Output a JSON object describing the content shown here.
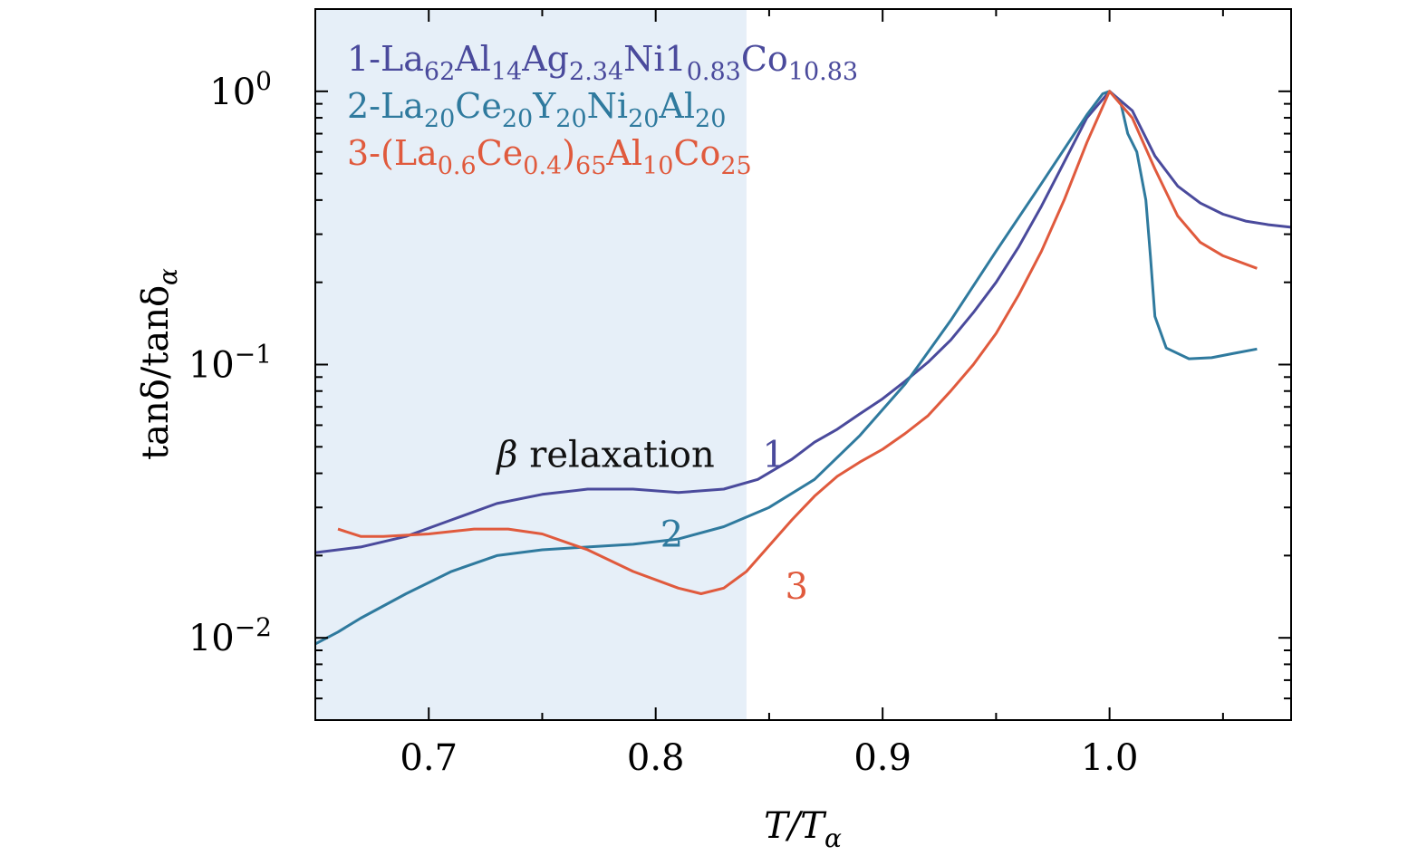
{
  "chart_data": {
    "type": "line",
    "xlabel": "T/Tα",
    "ylabel": "tanδ/tanδα",
    "xlim": [
      0.65,
      1.08
    ],
    "ylim": [
      0.005,
      2.0
    ],
    "yscale": "log",
    "grid": false,
    "legend_position": "top-left",
    "x_ticks": [
      0.7,
      0.8,
      0.9,
      1.0
    ],
    "x_tick_labels": [
      "0.7",
      "0.8",
      "0.9",
      "1.0"
    ],
    "y_ticks": [
      0.01,
      0.1,
      1
    ],
    "y_tick_labels": [
      {
        "base": "10",
        "exp": "−2"
      },
      {
        "base": "10",
        "exp": "−1"
      },
      {
        "base": "10",
        "exp": "0"
      }
    ],
    "shaded_region": {
      "x": [
        0.65,
        0.84
      ],
      "color": "#e6eff8"
    },
    "annotations": {
      "beta_symbol": "β",
      "beta_text": "relaxation",
      "beta_x": 0.73,
      "beta_y": 0.047,
      "curve_labels": [
        {
          "text": "1",
          "x": 0.847,
          "y": 0.047,
          "series": 0
        },
        {
          "text": "2",
          "x": 0.802,
          "y": 0.024,
          "series": 1
        },
        {
          "text": "3",
          "x": 0.857,
          "y": 0.0155,
          "series": 2
        }
      ]
    },
    "series": [
      {
        "name": "1-La62Al14Ag2.34Ni10.83Co10.83",
        "label_parts": [
          [
            "1-La",
            ""
          ],
          [
            "62",
            "sub"
          ],
          [
            "Al",
            ""
          ],
          [
            "14",
            "sub"
          ],
          [
            "Ag",
            ""
          ],
          [
            "2.34",
            "sub"
          ],
          [
            "Ni1",
            ""
          ],
          [
            "0.83",
            "sub"
          ],
          [
            "Co",
            ""
          ],
          [
            "10.83",
            "sub"
          ]
        ],
        "color": "#4a4a9c",
        "x": [
          0.65,
          0.67,
          0.69,
          0.71,
          0.73,
          0.75,
          0.77,
          0.79,
          0.81,
          0.83,
          0.845,
          0.86,
          0.87,
          0.88,
          0.89,
          0.9,
          0.91,
          0.92,
          0.93,
          0.94,
          0.95,
          0.96,
          0.97,
          0.98,
          0.99,
          1.0,
          1.01,
          1.02,
          1.03,
          1.04,
          1.05,
          1.06,
          1.07,
          1.08
        ],
        "y": [
          0.0205,
          0.0215,
          0.0235,
          0.027,
          0.031,
          0.0335,
          0.035,
          0.035,
          0.034,
          0.035,
          0.038,
          0.045,
          0.052,
          0.058,
          0.066,
          0.075,
          0.087,
          0.102,
          0.123,
          0.155,
          0.2,
          0.27,
          0.38,
          0.55,
          0.8,
          1.0,
          0.85,
          0.58,
          0.45,
          0.39,
          0.355,
          0.335,
          0.325,
          0.318
        ]
      },
      {
        "name": "2-La20Ce20Y20Ni20Al20",
        "label_parts": [
          [
            "2-La",
            ""
          ],
          [
            "20",
            "sub"
          ],
          [
            "Ce",
            ""
          ],
          [
            "20",
            "sub"
          ],
          [
            "Y",
            ""
          ],
          [
            "20",
            "sub"
          ],
          [
            "Ni",
            ""
          ],
          [
            "20",
            "sub"
          ],
          [
            "Al",
            ""
          ],
          [
            "20",
            "sub"
          ]
        ],
        "color": "#2f7a9e",
        "x": [
          0.65,
          0.66,
          0.67,
          0.69,
          0.71,
          0.73,
          0.75,
          0.77,
          0.79,
          0.81,
          0.83,
          0.85,
          0.87,
          0.89,
          0.91,
          0.93,
          0.95,
          0.97,
          0.99,
          0.997,
          1.0,
          1.005,
          1.008,
          1.012,
          1.016,
          1.018,
          1.02,
          1.025,
          1.035,
          1.045,
          1.055,
          1.065
        ],
        "y": [
          0.0095,
          0.0105,
          0.0118,
          0.0145,
          0.0175,
          0.02,
          0.021,
          0.0215,
          0.022,
          0.023,
          0.0255,
          0.03,
          0.038,
          0.055,
          0.085,
          0.145,
          0.26,
          0.46,
          0.82,
          0.98,
          1.0,
          0.9,
          0.7,
          0.6,
          0.4,
          0.25,
          0.15,
          0.115,
          0.105,
          0.106,
          0.11,
          0.114
        ]
      },
      {
        "name": "3-(La0.6Ce0.4)65Al10Co25",
        "label_parts": [
          [
            "3-(La",
            ""
          ],
          [
            "0.6",
            "sub"
          ],
          [
            "Ce",
            ""
          ],
          [
            "0.4",
            "sub"
          ],
          [
            ")",
            ""
          ],
          [
            "65",
            "sub"
          ],
          [
            "Al",
            ""
          ],
          [
            "10",
            "sub"
          ],
          [
            "Co",
            ""
          ],
          [
            "25",
            "sub"
          ]
        ],
        "color": "#e05a3d",
        "x": [
          0.66,
          0.67,
          0.68,
          0.7,
          0.72,
          0.735,
          0.75,
          0.77,
          0.79,
          0.81,
          0.82,
          0.83,
          0.84,
          0.86,
          0.87,
          0.88,
          0.89,
          0.9,
          0.91,
          0.92,
          0.93,
          0.94,
          0.95,
          0.96,
          0.97,
          0.98,
          0.99,
          1.0,
          1.01,
          1.02,
          1.03,
          1.04,
          1.05,
          1.065
        ],
        "y": [
          0.025,
          0.0235,
          0.0235,
          0.024,
          0.025,
          0.025,
          0.024,
          0.021,
          0.0175,
          0.0152,
          0.0145,
          0.0152,
          0.0175,
          0.027,
          0.033,
          0.039,
          0.044,
          0.049,
          0.056,
          0.065,
          0.08,
          0.1,
          0.13,
          0.18,
          0.26,
          0.4,
          0.65,
          1.0,
          0.8,
          0.52,
          0.35,
          0.28,
          0.25,
          0.225
        ]
      }
    ]
  }
}
